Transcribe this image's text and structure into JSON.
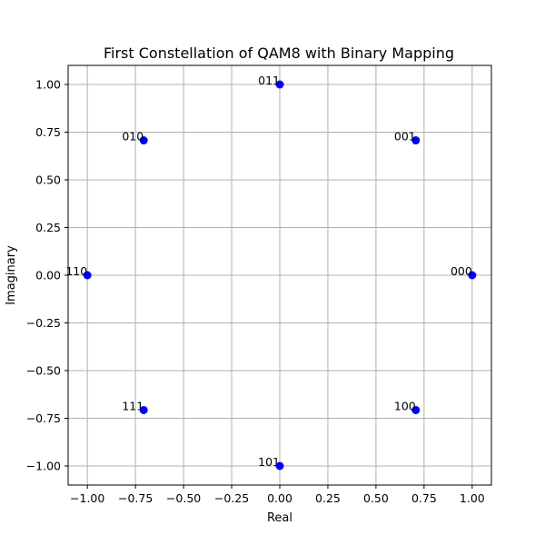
{
  "chart_data": {
    "type": "scatter",
    "title": "First Constellation of QAM8 with Binary Mapping",
    "xlabel": "Real",
    "ylabel": "Imaginary",
    "xlim": [
      -1.1,
      1.1
    ],
    "ylim": [
      -1.1,
      1.1
    ],
    "xticks": [
      -1.0,
      -0.75,
      -0.5,
      -0.25,
      0.0,
      0.25,
      0.5,
      0.75,
      1.0
    ],
    "yticks": [
      -1.0,
      -0.75,
      -0.5,
      -0.25,
      0.0,
      0.25,
      0.5,
      0.75,
      1.0
    ],
    "xtick_labels": [
      "−1.00",
      "−0.75",
      "−0.50",
      "−0.25",
      "0.00",
      "0.25",
      "0.50",
      "0.75",
      "1.00"
    ],
    "ytick_labels": [
      "−1.00",
      "−0.75",
      "−0.50",
      "−0.25",
      "0.00",
      "0.25",
      "0.50",
      "0.75",
      "1.00"
    ],
    "grid": true,
    "marker_color": "#0000ff",
    "points": [
      {
        "label": "000",
        "x": 1.0,
        "y": 0.0
      },
      {
        "label": "001",
        "x": 0.7071,
        "y": 0.7071
      },
      {
        "label": "011",
        "x": 0.0,
        "y": 1.0
      },
      {
        "label": "010",
        "x": -0.7071,
        "y": 0.7071
      },
      {
        "label": "110",
        "x": -1.0,
        "y": 0.0
      },
      {
        "label": "111",
        "x": -0.7071,
        "y": -0.7071
      },
      {
        "label": "101",
        "x": 0.0,
        "y": -1.0
      },
      {
        "label": "100",
        "x": 0.7071,
        "y": -0.7071
      }
    ]
  }
}
